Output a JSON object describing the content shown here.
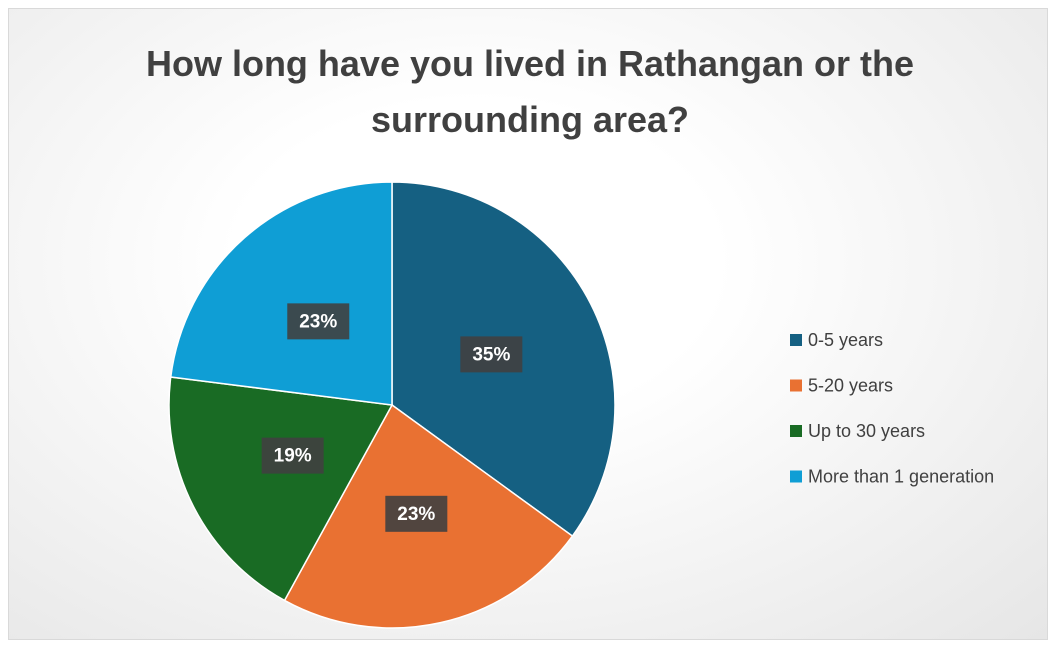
{
  "chart_data": {
    "type": "pie",
    "title": "How long have you lived in Rathangan or the surrounding area?",
    "categories": [
      "0-5 years",
      "5-20 years",
      "Up to 30 years",
      "More than 1 generation"
    ],
    "values": [
      35,
      23,
      19,
      23
    ],
    "value_labels": [
      "35%",
      "23%",
      "19%",
      "23%"
    ],
    "colors": [
      "#156082",
      "#e97132",
      "#196b24",
      "#0f9ed5"
    ],
    "legend": "right"
  }
}
